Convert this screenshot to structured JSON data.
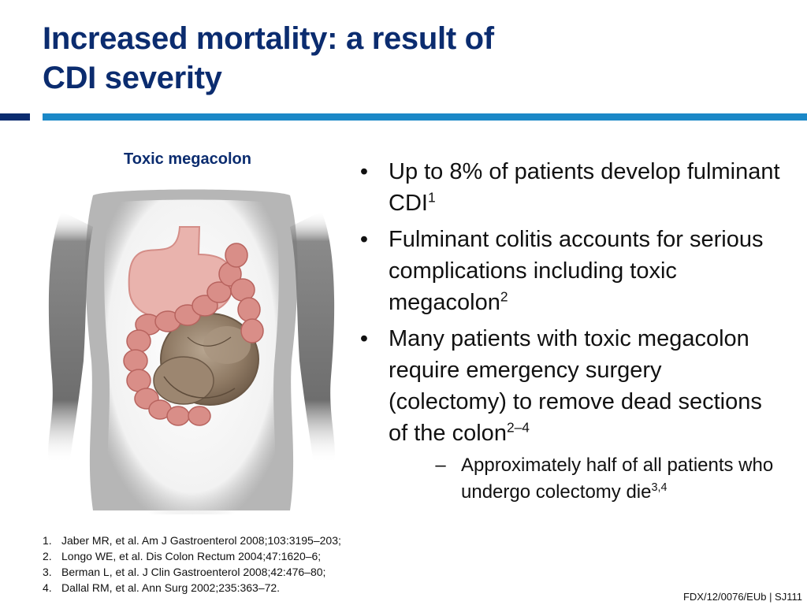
{
  "title": {
    "line1": "Increased mortality: a result of",
    "line2": "CDI severity"
  },
  "figure": {
    "label": "Toxic megacolon",
    "colors": {
      "body": "#6e6e6e",
      "stomach": "#e9b3ad",
      "colon": "#d98e88",
      "distended_colon": "#8f7a64"
    }
  },
  "bullets": [
    {
      "marker": "•",
      "text": "Up to 8% of patients develop fulminant CDI",
      "sup": "1"
    },
    {
      "marker": "•",
      "text": "Fulminant colitis accounts for serious complications including toxic megacolon",
      "sup": "2"
    },
    {
      "marker": "•",
      "text": "Many patients with toxic megacolon require emergency surgery (colectomy) to remove dead sections of the colon",
      "sup": "2–4"
    }
  ],
  "sub_bullets": [
    {
      "marker": "–",
      "text": "Approximately half of all patients who undergo colectomy die",
      "sup": "3,4"
    }
  ],
  "references": [
    {
      "num": "1.",
      "text": "Jaber MR, et al. Am J Gastroenterol 2008;103:3195–203;"
    },
    {
      "num": "2.",
      "text": "Longo WE, et al. Dis Colon Rectum 2004;47:1620–6;"
    },
    {
      "num": "3.",
      "text": "Berman L, et al. J Clin Gastroenterol 2008;42:476–80;"
    },
    {
      "num": "4.",
      "text": "Dallal RM, et al. Ann Surg 2002;235:363–72."
    }
  ],
  "footer": {
    "code": "FDX/12/0076/EUb | SJ111"
  },
  "colors": {
    "title": "#0b2c6f",
    "rule_dark": "#0b2c6f",
    "rule_light": "#1b88c7"
  }
}
